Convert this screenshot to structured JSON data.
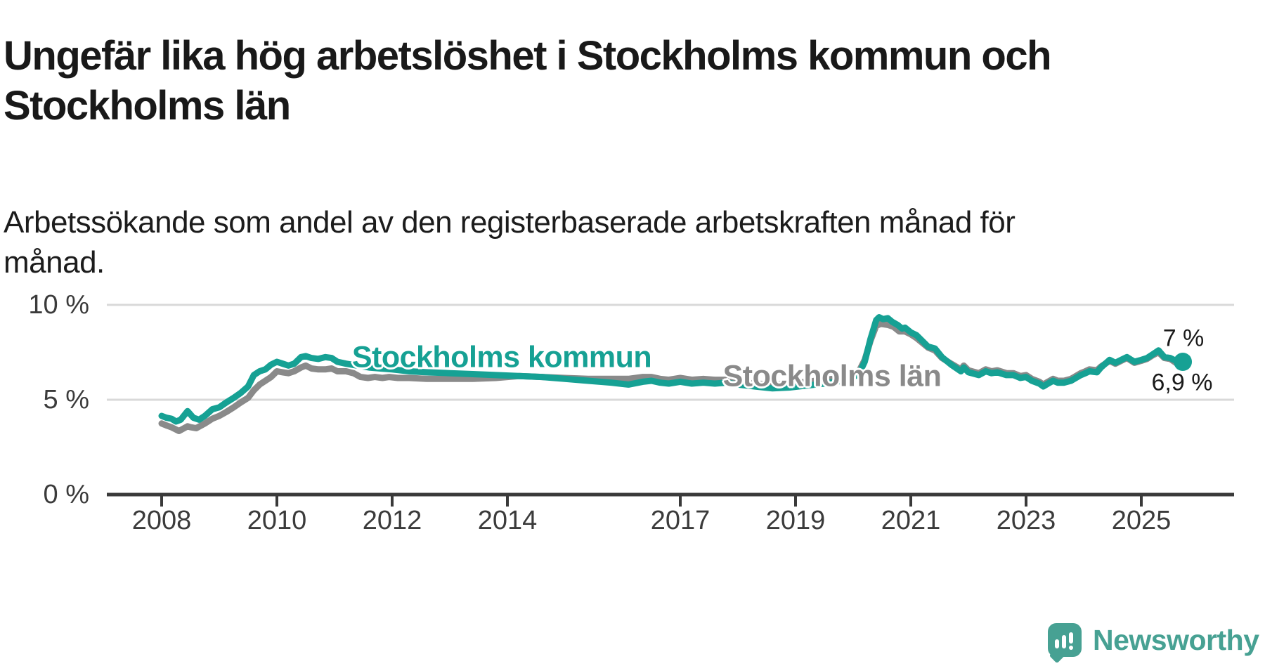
{
  "header": {
    "title": "Ungefär lika hög arbetslöshet i Stockholms kommun och\nStockholms län",
    "subtitle": "Arbetssökande som andel av den registerbaserade arbetskraften månad för\nmånad."
  },
  "colors": {
    "kommun_teal": "#16a194",
    "lan_gray": "#8a8a8a",
    "gridline": "#d9d9d9",
    "axis": "#3a3a3a",
    "logo_teal": "#47a193",
    "annotation_text": "#1a1a1a"
  },
  "footer": {
    "logo_text": "Newsworthy"
  },
  "chart_data": {
    "type": "line",
    "title": "Ungefär lika hög arbetslöshet i Stockholms kommun och Stockholms län",
    "subtitle": "Arbetssökande som andel av den registerbaserade arbetskraften månad för månad.",
    "unit": "%",
    "grid": "horizontal-only",
    "legend_position": "inline-labels",
    "x_axis": {
      "range": [
        2007.9,
        2026.1
      ],
      "tick_years": [
        2008,
        2010,
        2012,
        2014,
        2017,
        2019,
        2021,
        2023,
        2025
      ],
      "tick_labels": [
        "2008",
        "2010",
        "2012",
        "2014",
        "2017",
        "2019",
        "2021",
        "2023",
        "2025"
      ]
    },
    "y_axis": {
      "range": [
        0,
        10.5
      ],
      "gridline_values": [
        5,
        10
      ],
      "ticks": [
        {
          "value": 10,
          "label": "10 %"
        },
        {
          "value": 5,
          "label": "5 %"
        },
        {
          "value": 0,
          "label": "0 %"
        }
      ]
    },
    "series": [
      {
        "name": "Stockholms län",
        "color": "#8a8a8a",
        "end_dot": false,
        "points": [
          [
            2008.0,
            3.75
          ],
          [
            2008.08,
            3.65
          ],
          [
            2008.17,
            3.55
          ],
          [
            2008.3,
            3.35
          ],
          [
            2008.45,
            3.6
          ],
          [
            2008.5,
            3.55
          ],
          [
            2008.6,
            3.5
          ],
          [
            2008.75,
            3.75
          ],
          [
            2008.88,
            4.0
          ],
          [
            2009.0,
            4.15
          ],
          [
            2009.12,
            4.35
          ],
          [
            2009.25,
            4.6
          ],
          [
            2009.37,
            4.85
          ],
          [
            2009.5,
            5.1
          ],
          [
            2009.6,
            5.5
          ],
          [
            2009.7,
            5.8
          ],
          [
            2009.8,
            6.0
          ],
          [
            2009.9,
            6.2
          ],
          [
            2010.0,
            6.5
          ],
          [
            2010.1,
            6.45
          ],
          [
            2010.2,
            6.4
          ],
          [
            2010.3,
            6.5
          ],
          [
            2010.42,
            6.7
          ],
          [
            2010.5,
            6.8
          ],
          [
            2010.6,
            6.65
          ],
          [
            2010.72,
            6.6
          ],
          [
            2010.84,
            6.6
          ],
          [
            2010.95,
            6.65
          ],
          [
            2011.05,
            6.5
          ],
          [
            2011.2,
            6.5
          ],
          [
            2011.33,
            6.4
          ],
          [
            2011.45,
            6.2
          ],
          [
            2011.58,
            6.15
          ],
          [
            2011.7,
            6.2
          ],
          [
            2011.83,
            6.15
          ],
          [
            2011.95,
            6.2
          ],
          [
            2012.1,
            6.15
          ],
          [
            2012.3,
            6.15
          ],
          [
            2012.6,
            6.1
          ],
          [
            2013.0,
            6.1
          ],
          [
            2013.4,
            6.1
          ],
          [
            2013.8,
            6.15
          ],
          [
            2014.2,
            6.25
          ],
          [
            2014.6,
            6.2
          ],
          [
            2015.0,
            6.15
          ],
          [
            2015.4,
            6.1
          ],
          [
            2015.8,
            6.1
          ],
          [
            2016.1,
            6.1
          ],
          [
            2016.35,
            6.2
          ],
          [
            2016.5,
            6.2
          ],
          [
            2016.65,
            6.1
          ],
          [
            2016.8,
            6.05
          ],
          [
            2017.0,
            6.15
          ],
          [
            2017.2,
            6.05
          ],
          [
            2017.4,
            6.1
          ],
          [
            2017.6,
            6.05
          ],
          [
            2017.8,
            6.05
          ],
          [
            2018.0,
            5.95
          ],
          [
            2018.3,
            5.85
          ],
          [
            2018.6,
            5.8
          ],
          [
            2018.9,
            5.85
          ],
          [
            2019.2,
            5.95
          ],
          [
            2019.5,
            6.05
          ],
          [
            2019.8,
            6.15
          ],
          [
            2020.0,
            6.35
          ],
          [
            2020.1,
            6.5
          ],
          [
            2020.2,
            7.1
          ],
          [
            2020.3,
            8.1
          ],
          [
            2020.4,
            8.9
          ],
          [
            2020.48,
            9.0
          ],
          [
            2020.6,
            8.95
          ],
          [
            2020.7,
            8.85
          ],
          [
            2020.8,
            8.6
          ],
          [
            2020.9,
            8.6
          ],
          [
            2021.0,
            8.45
          ],
          [
            2021.1,
            8.25
          ],
          [
            2021.2,
            8.0
          ],
          [
            2021.3,
            7.75
          ],
          [
            2021.42,
            7.6
          ],
          [
            2021.54,
            7.2
          ],
          [
            2021.7,
            6.9
          ],
          [
            2021.87,
            6.6
          ],
          [
            2021.92,
            6.8
          ],
          [
            2022.0,
            6.55
          ],
          [
            2022.18,
            6.4
          ],
          [
            2022.3,
            6.6
          ],
          [
            2022.4,
            6.5
          ],
          [
            2022.5,
            6.55
          ],
          [
            2022.66,
            6.4
          ],
          [
            2022.78,
            6.4
          ],
          [
            2022.9,
            6.25
          ],
          [
            2023.0,
            6.3
          ],
          [
            2023.1,
            6.1
          ],
          [
            2023.23,
            5.95
          ],
          [
            2023.3,
            5.8
          ],
          [
            2023.38,
            5.95
          ],
          [
            2023.47,
            6.1
          ],
          [
            2023.55,
            6.0
          ],
          [
            2023.66,
            6.0
          ],
          [
            2023.78,
            6.1
          ],
          [
            2023.95,
            6.4
          ],
          [
            2024.03,
            6.5
          ],
          [
            2024.1,
            6.6
          ],
          [
            2024.23,
            6.55
          ],
          [
            2024.3,
            6.75
          ],
          [
            2024.45,
            7.05
          ],
          [
            2024.55,
            6.9
          ],
          [
            2024.65,
            7.05
          ],
          [
            2024.75,
            7.2
          ],
          [
            2024.88,
            6.95
          ],
          [
            2025.0,
            7.05
          ],
          [
            2025.1,
            7.15
          ],
          [
            2025.2,
            7.35
          ],
          [
            2025.3,
            7.5
          ],
          [
            2025.4,
            7.2
          ],
          [
            2025.5,
            7.15
          ],
          [
            2025.6,
            6.95
          ],
          [
            2025.72,
            6.9
          ]
        ],
        "last_value_label": "6,9 %"
      },
      {
        "name": "Stockholms kommun",
        "color": "#16a194",
        "end_dot": true,
        "points": [
          [
            2008.0,
            4.15
          ],
          [
            2008.08,
            4.05
          ],
          [
            2008.17,
            4.0
          ],
          [
            2008.25,
            3.85
          ],
          [
            2008.33,
            3.95
          ],
          [
            2008.45,
            4.4
          ],
          [
            2008.55,
            4.05
          ],
          [
            2008.65,
            3.95
          ],
          [
            2008.75,
            4.15
          ],
          [
            2008.88,
            4.5
          ],
          [
            2009.0,
            4.6
          ],
          [
            2009.12,
            4.85
          ],
          [
            2009.25,
            5.1
          ],
          [
            2009.37,
            5.35
          ],
          [
            2009.5,
            5.7
          ],
          [
            2009.6,
            6.3
          ],
          [
            2009.7,
            6.5
          ],
          [
            2009.8,
            6.6
          ],
          [
            2009.9,
            6.85
          ],
          [
            2010.0,
            7.0
          ],
          [
            2010.1,
            6.9
          ],
          [
            2010.2,
            6.8
          ],
          [
            2010.3,
            6.9
          ],
          [
            2010.42,
            7.25
          ],
          [
            2010.5,
            7.3
          ],
          [
            2010.6,
            7.2
          ],
          [
            2010.72,
            7.15
          ],
          [
            2010.84,
            7.25
          ],
          [
            2010.95,
            7.2
          ],
          [
            2011.05,
            7.0
          ],
          [
            2011.2,
            6.9
          ],
          [
            2011.4,
            6.8
          ],
          [
            2011.6,
            6.7
          ],
          [
            2011.8,
            6.65
          ],
          [
            2012.0,
            6.6
          ],
          [
            2012.3,
            6.5
          ],
          [
            2012.6,
            6.45
          ],
          [
            2013.0,
            6.4
          ],
          [
            2013.4,
            6.35
          ],
          [
            2013.8,
            6.3
          ],
          [
            2014.2,
            6.25
          ],
          [
            2014.6,
            6.2
          ],
          [
            2015.0,
            6.1
          ],
          [
            2015.4,
            6.0
          ],
          [
            2015.8,
            5.9
          ],
          [
            2016.1,
            5.8
          ],
          [
            2016.35,
            5.95
          ],
          [
            2016.5,
            6.0
          ],
          [
            2016.65,
            5.9
          ],
          [
            2016.8,
            5.85
          ],
          [
            2017.0,
            5.95
          ],
          [
            2017.2,
            5.85
          ],
          [
            2017.4,
            5.9
          ],
          [
            2017.6,
            5.85
          ],
          [
            2017.8,
            5.9
          ],
          [
            2018.0,
            5.8
          ],
          [
            2018.3,
            5.7
          ],
          [
            2018.6,
            5.6
          ],
          [
            2018.9,
            5.65
          ],
          [
            2019.2,
            5.75
          ],
          [
            2019.5,
            5.85
          ],
          [
            2019.8,
            6.0
          ],
          [
            2020.0,
            6.2
          ],
          [
            2020.1,
            6.35
          ],
          [
            2020.2,
            7.0
          ],
          [
            2020.3,
            8.2
          ],
          [
            2020.4,
            9.2
          ],
          [
            2020.45,
            9.35
          ],
          [
            2020.52,
            9.25
          ],
          [
            2020.6,
            9.3
          ],
          [
            2020.68,
            9.1
          ],
          [
            2020.77,
            8.95
          ],
          [
            2020.85,
            8.75
          ],
          [
            2020.9,
            8.8
          ],
          [
            2021.0,
            8.55
          ],
          [
            2021.1,
            8.4
          ],
          [
            2021.2,
            8.1
          ],
          [
            2021.3,
            7.8
          ],
          [
            2021.42,
            7.7
          ],
          [
            2021.54,
            7.25
          ],
          [
            2021.7,
            6.85
          ],
          [
            2021.87,
            6.5
          ],
          [
            2021.92,
            6.7
          ],
          [
            2022.0,
            6.45
          ],
          [
            2022.18,
            6.3
          ],
          [
            2022.3,
            6.5
          ],
          [
            2022.4,
            6.4
          ],
          [
            2022.5,
            6.45
          ],
          [
            2022.66,
            6.3
          ],
          [
            2022.78,
            6.3
          ],
          [
            2022.9,
            6.15
          ],
          [
            2023.0,
            6.2
          ],
          [
            2023.1,
            6.0
          ],
          [
            2023.23,
            5.85
          ],
          [
            2023.3,
            5.7
          ],
          [
            2023.38,
            5.85
          ],
          [
            2023.47,
            6.0
          ],
          [
            2023.55,
            5.9
          ],
          [
            2023.66,
            5.9
          ],
          [
            2023.78,
            6.0
          ],
          [
            2023.95,
            6.3
          ],
          [
            2024.03,
            6.4
          ],
          [
            2024.1,
            6.5
          ],
          [
            2024.23,
            6.45
          ],
          [
            2024.3,
            6.7
          ],
          [
            2024.45,
            7.1
          ],
          [
            2024.55,
            6.95
          ],
          [
            2024.65,
            7.1
          ],
          [
            2024.75,
            7.25
          ],
          [
            2024.88,
            7.0
          ],
          [
            2025.0,
            7.1
          ],
          [
            2025.1,
            7.2
          ],
          [
            2025.2,
            7.4
          ],
          [
            2025.3,
            7.6
          ],
          [
            2025.4,
            7.25
          ],
          [
            2025.5,
            7.2
          ],
          [
            2025.6,
            7.05
          ],
          [
            2025.72,
            7.0
          ]
        ],
        "last_value_label": "7 %"
      }
    ],
    "series_labels": [
      {
        "text": "Stockholms kommun",
        "color": "#16a194"
      },
      {
        "text": "Stockholms län",
        "color": "#8a8a8a"
      }
    ],
    "annotations": [
      {
        "text": "7 %",
        "series": "Stockholms kommun"
      },
      {
        "text": "6,9 %",
        "series": "Stockholms län"
      }
    ]
  }
}
